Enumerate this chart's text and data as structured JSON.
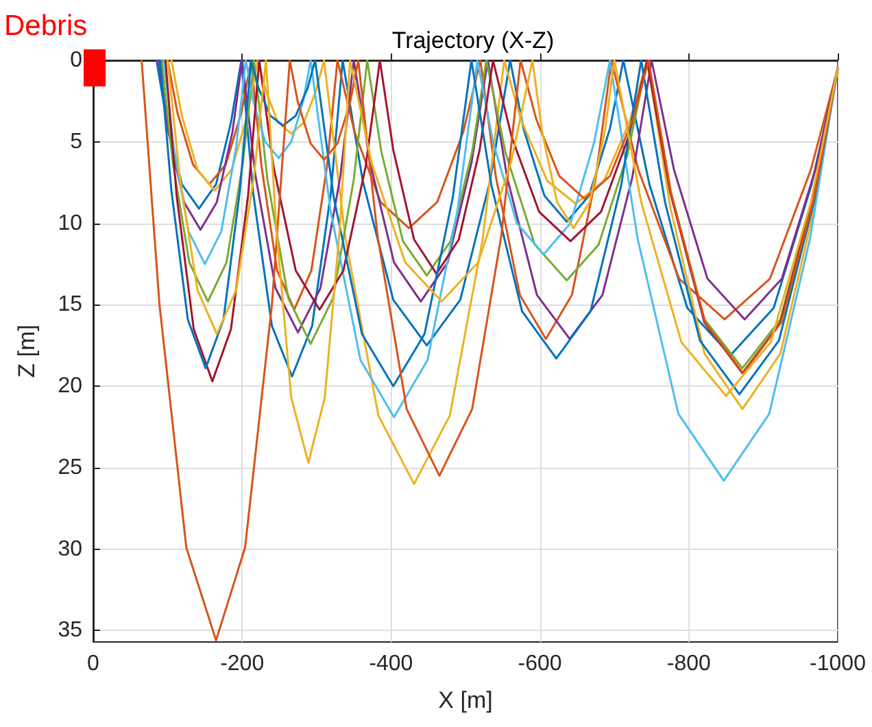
{
  "chart_data": {
    "type": "line",
    "title": "Trajectory (X-Z)",
    "xlabel": "X [m]",
    "ylabel": "Z [m]",
    "annotations": [
      "Debris"
    ],
    "xlim": [
      0,
      -1000
    ],
    "xticks": [
      0,
      -200,
      -400,
      -600,
      -800,
      -1000
    ],
    "ylim": [
      35.7,
      0
    ],
    "yticks": [
      0,
      5,
      10,
      15,
      20,
      25,
      30,
      35
    ],
    "grid": true,
    "series": [
      {
        "color": "#0072bd",
        "x": [
          -85,
          -99,
          -119,
          -142,
          -165,
          -185,
          -199,
          -215,
          -240,
          -267,
          -294,
          -319,
          -335,
          -362,
          -403,
          -448,
          -493,
          -533,
          -560,
          -578,
          -606,
          -636,
          -666,
          -694,
          -712,
          -747,
          -798,
          -856,
          -914,
          -965,
          -1000
        ],
        "values": [
          0,
          3.8,
          7.6,
          9.1,
          7.6,
          3.8,
          0,
          8.2,
          16.3,
          19.4,
          16.3,
          8.2,
          0,
          7.4,
          14.7,
          17.5,
          14.7,
          7.4,
          0,
          4.2,
          8.3,
          9.9,
          8.3,
          4.2,
          0,
          7.6,
          15.2,
          18.1,
          15.2,
          7.6,
          0.5
        ]
      },
      {
        "color": "#d95319",
        "x": [
          -100,
          -113,
          -134,
          -156,
          -178,
          -199,
          -212,
          -226,
          -247,
          -270,
          -293,
          -314,
          -328,
          -351,
          -386,
          -424,
          -462,
          -497,
          -520,
          -541,
          -573,
          -608,
          -643,
          -675,
          -696,
          -732,
          -787,
          -848,
          -909,
          -964,
          -1000
        ],
        "values": [
          0,
          3.2,
          6.4,
          7.6,
          6.4,
          3.2,
          0,
          6.5,
          12.9,
          15.3,
          12.9,
          6.5,
          0,
          4.4,
          8.7,
          10.3,
          8.7,
          4.4,
          0,
          7.2,
          14.4,
          17.1,
          14.4,
          7.2,
          0,
          6.7,
          13.4,
          15.9,
          13.4,
          6.7,
          0.5
        ]
      },
      {
        "color": "#edb120",
        "x": [
          -105,
          -119,
          -140,
          -163,
          -186,
          -207,
          -221,
          -232,
          -248,
          -266,
          -283,
          -299,
          -310,
          -339,
          -383,
          -431,
          -479,
          -523,
          -552,
          -575,
          -610,
          -648,
          -686,
          -721,
          -744,
          -775,
          -821,
          -872,
          -923,
          -969,
          -1000
        ],
        "values": [
          0,
          3.4,
          6.7,
          8.0,
          6.7,
          3.4,
          0,
          1.9,
          3.8,
          4.5,
          3.8,
          1.9,
          0,
          11.0,
          21.8,
          26.0,
          21.8,
          11.0,
          0,
          3.7,
          7.4,
          8.8,
          7.4,
          3.7,
          0,
          9.0,
          18.0,
          21.4,
          18.0,
          9.0,
          0.5
        ]
      },
      {
        "color": "#7e2f8e",
        "x": [
          -88,
          -101,
          -122,
          -144,
          -166,
          -187,
          -200,
          -218,
          -245,
          -275,
          -305,
          -332,
          -350,
          -372,
          -404,
          -440,
          -476,
          -508,
          -530,
          -556,
          -596,
          -640,
          -684,
          -724,
          -750,
          -780,
          -825,
          -875,
          -925,
          -970,
          -1000
        ],
        "values": [
          0,
          4.4,
          8.7,
          10.4,
          8.7,
          4.4,
          0,
          7.1,
          14.0,
          16.7,
          14.0,
          7.1,
          0,
          6.3,
          12.4,
          14.8,
          12.4,
          6.3,
          0,
          7.2,
          14.4,
          17.1,
          14.4,
          7.2,
          0,
          6.7,
          13.4,
          15.9,
          13.4,
          6.7,
          0.5
        ]
      },
      {
        "color": "#77ac30",
        "x": [
          -92,
          -107,
          -129,
          -154,
          -179,
          -201,
          -216,
          -234,
          -262,
          -292,
          -322,
          -350,
          -368,
          -387,
          -416,
          -448,
          -480,
          -509,
          -528,
          -554,
          -593,
          -636,
          -679,
          -718,
          -744,
          -775,
          -821,
          -872,
          -923,
          -969,
          -1000
        ],
        "values": [
          0,
          6.3,
          12.4,
          14.8,
          12.4,
          6.3,
          0,
          7.3,
          14.6,
          17.4,
          14.6,
          7.3,
          0,
          5.6,
          11.1,
          13.2,
          11.1,
          5.6,
          0,
          5.7,
          11.3,
          13.5,
          11.3,
          5.7,
          0,
          8.0,
          15.9,
          18.9,
          15.9,
          8.0,
          0.5
        ]
      },
      {
        "color": "#4dbeee",
        "x": [
          -95,
          -108,
          -128,
          -150,
          -172,
          -192,
          -205,
          -215,
          -231,
          -249,
          -266,
          -282,
          -292,
          -319,
          -359,
          -404,
          -449,
          -489,
          -516,
          -537,
          -569,
          -605,
          -641,
          -673,
          -694,
          -731,
          -786,
          -847,
          -908,
          -963,
          -1000
        ],
        "values": [
          0,
          5.3,
          10.5,
          12.5,
          10.5,
          5.3,
          0,
          2.5,
          5.0,
          6.0,
          5.0,
          2.5,
          0,
          9.3,
          18.4,
          21.9,
          18.4,
          9.3,
          0,
          5.0,
          10.0,
          11.9,
          10.0,
          5.0,
          0,
          10.9,
          21.7,
          25.8,
          21.7,
          10.9,
          0.5
        ]
      },
      {
        "color": "#a2142f",
        "x": [
          -97,
          -112,
          -135,
          -160,
          -185,
          -208,
          -223,
          -242,
          -272,
          -304,
          -336,
          -366,
          -385,
          -403,
          -431,
          -461,
          -491,
          -519,
          -537,
          -562,
          -599,
          -641,
          -682,
          -719,
          -744,
          -775,
          -821,
          -872,
          -923,
          -969,
          -1000
        ],
        "values": [
          0,
          8.3,
          16.5,
          19.7,
          16.5,
          8.3,
          0,
          6.5,
          12.9,
          15.3,
          12.9,
          6.5,
          0,
          5.5,
          11.0,
          13.1,
          11.0,
          5.5,
          0,
          4.7,
          9.3,
          11.1,
          9.3,
          4.7,
          0,
          8.1,
          16.1,
          19.2,
          16.1,
          8.1,
          0.5
        ]
      },
      {
        "color": "#0072bd",
        "x": [
          -90,
          -105,
          -127,
          -151,
          -175,
          -197,
          -212,
          -222,
          -238,
          -255,
          -272,
          -288,
          -298,
          -323,
          -361,
          -403,
          -445,
          -483,
          -508,
          -535,
          -576,
          -622,
          -668,
          -709,
          -736,
          -768,
          -815,
          -868,
          -921,
          -968,
          -1000
        ],
        "values": [
          0,
          8.0,
          15.9,
          18.9,
          15.9,
          8.0,
          0,
          1.7,
          3.4,
          4.0,
          3.4,
          1.7,
          0,
          8.4,
          16.8,
          20.0,
          16.8,
          8.4,
          0,
          7.7,
          15.4,
          18.3,
          15.4,
          7.7,
          0,
          8.7,
          17.2,
          20.5,
          17.2,
          8.7,
          0.5
        ]
      },
      {
        "color": "#d95319",
        "x": [
          -65,
          -89,
          -125,
          -165,
          -204,
          -240,
          -264,
          -275,
          -292,
          -310,
          -328,
          -345,
          -356,
          -382,
          -421,
          -465,
          -509,
          -548,
          -574,
          -595,
          -626,
          -660,
          -694,
          -725,
          -746,
          -776,
          -822,
          -873,
          -924,
          -970,
          -1000
        ],
        "values": [
          0,
          15.0,
          29.9,
          35.6,
          29.9,
          15.0,
          0,
          2.6,
          5.1,
          6.1,
          5.1,
          2.6,
          0,
          10.8,
          21.4,
          25.5,
          21.4,
          10.8,
          0,
          3.6,
          7.1,
          8.5,
          7.1,
          3.6,
          0,
          8.1,
          16.1,
          19.2,
          16.1,
          8.1,
          0.5
        ]
      },
      {
        "color": "#edb120",
        "x": [
          -100,
          -116,
          -140,
          -166,
          -192,
          -216,
          -232,
          -246,
          -266,
          -289,
          -311,
          -331,
          -345,
          -374,
          -419,
          -468,
          -517,
          -561,
          -590,
          -603,
          -623,
          -645,
          -667,
          -687,
          -700,
          -736,
          -790,
          -850,
          -910,
          -964,
          -1000
        ],
        "values": [
          0,
          7.1,
          14.1,
          16.8,
          14.1,
          7.1,
          0,
          10.4,
          20.7,
          24.7,
          20.7,
          10.4,
          0,
          6.3,
          12.4,
          14.8,
          12.4,
          6.3,
          0,
          4.4,
          8.7,
          10.3,
          8.7,
          4.4,
          0,
          8.7,
          17.3,
          20.6,
          17.3,
          8.7,
          0.5
        ]
      }
    ]
  }
}
